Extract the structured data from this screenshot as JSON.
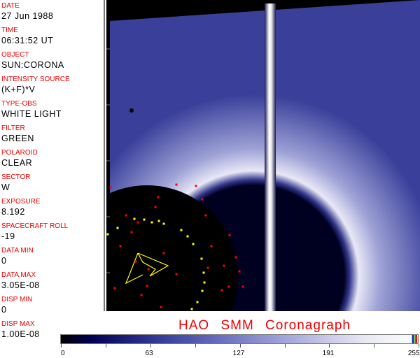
{
  "info_fields": [
    {
      "label": "DATE",
      "value": "27 Jun 1988"
    },
    {
      "label": "TIME",
      "value": "06:31:52 UT"
    },
    {
      "label": "OBJECT",
      "value": "SUN:CORONA"
    },
    {
      "label": "INTENSITY SOURCE",
      "value": "(K+F)*V"
    },
    {
      "label": "TYPE-OBS",
      "value": "WHITE LIGHT"
    },
    {
      "label": "FILTER",
      "value": "GREEN"
    },
    {
      "label": "POLAROID",
      "value": "CLEAR"
    },
    {
      "label": "SECTOR",
      "value": "W"
    },
    {
      "label": "EXPOSURE",
      "value": "8.192"
    },
    {
      "label": "SPACECRAFT ROLL",
      "value": "-19"
    },
    {
      "label": "DATA MIN",
      "value": "0"
    },
    {
      "label": "DATA MAX",
      "value": "3.05E-08"
    },
    {
      "label": "DISP MIN",
      "value": "0"
    },
    {
      "label": "DISP MAX",
      "value": "1.00E-08"
    }
  ],
  "title": "HAO  SMM Coronagraph",
  "colorbar": {
    "labels": [
      "0",
      "63",
      "127",
      "191",
      "255"
    ],
    "min": 0,
    "max": 255,
    "end_colors": [
      "#ffff00",
      "#0000ff",
      "#00c000",
      "#ff0000"
    ]
  },
  "colors": {
    "label": "#e00000",
    "corona": "#4a50a8",
    "marker_red": "#ff0000",
    "marker_yellow": "#ffff00"
  }
}
